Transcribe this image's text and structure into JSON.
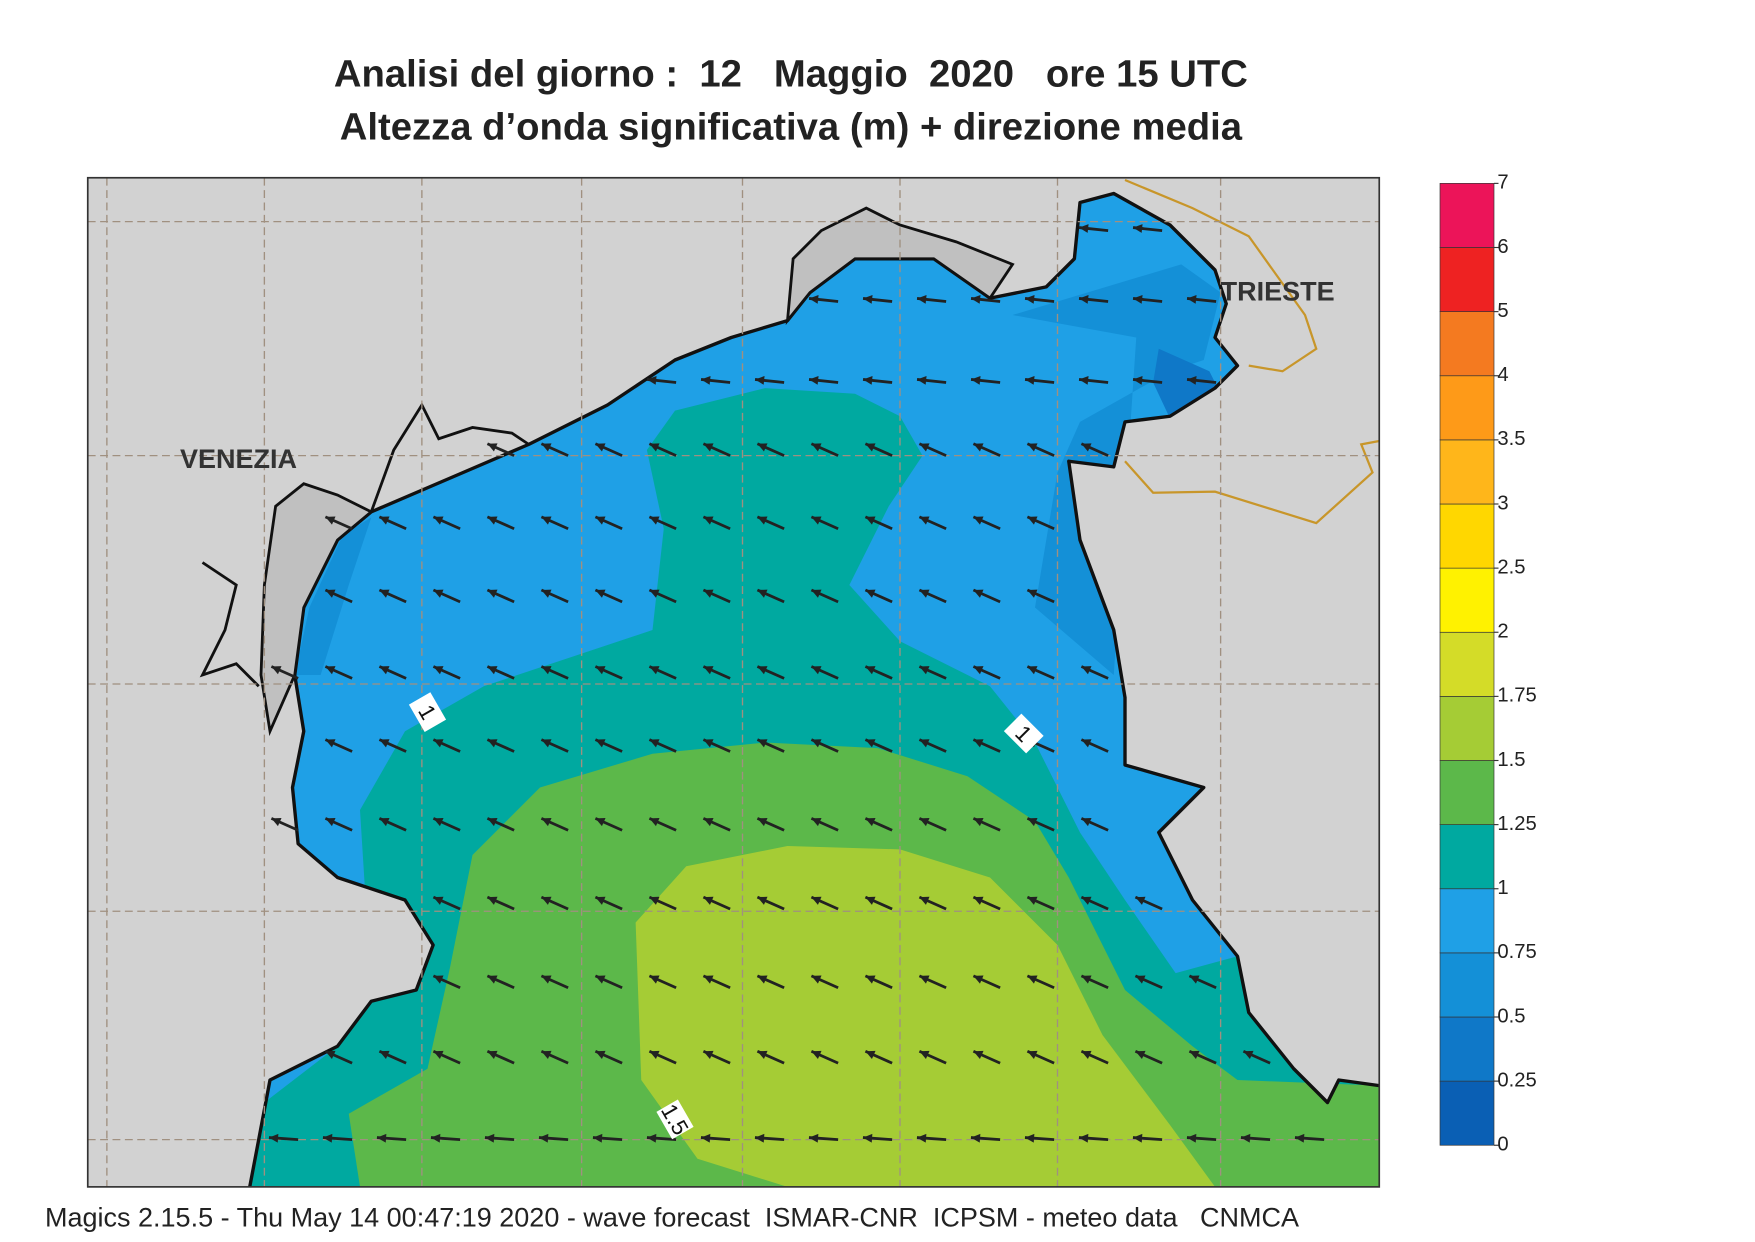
{
  "title": [
    "Analisi del giorno :  12   Maggio  2020   ore 15 UTC",
    "Altezza d’onda significativa (m) + direzione media"
  ],
  "places": [
    "VENEZIA",
    "TRIESTE"
  ],
  "contour_labels": [
    "1",
    "1",
    "1.5"
  ],
  "legend": {
    "levels": [
      0,
      0.25,
      0.5,
      0.75,
      1,
      1.25,
      1.5,
      1.75,
      2,
      2.5,
      3,
      3.5,
      4,
      5,
      6,
      7
    ],
    "colors": [
      "#0a5fb4",
      "#0f78c8",
      "#1490d7",
      "#1fa0e6",
      "#00a9a0",
      "#5cb84a",
      "#a5cc35",
      "#d4dc28",
      "#fff200",
      "#ffd700",
      "#ffb61a",
      "#fe9a18",
      "#f47a20",
      "#ee2222",
      "#ec1459"
    ]
  },
  "footer": "Magics 2.15.5 - Thu May 14 00:47:19 2020 - wave forecast  ISMAR-CNR  ICPSM - meteo data   CNMCA"
}
